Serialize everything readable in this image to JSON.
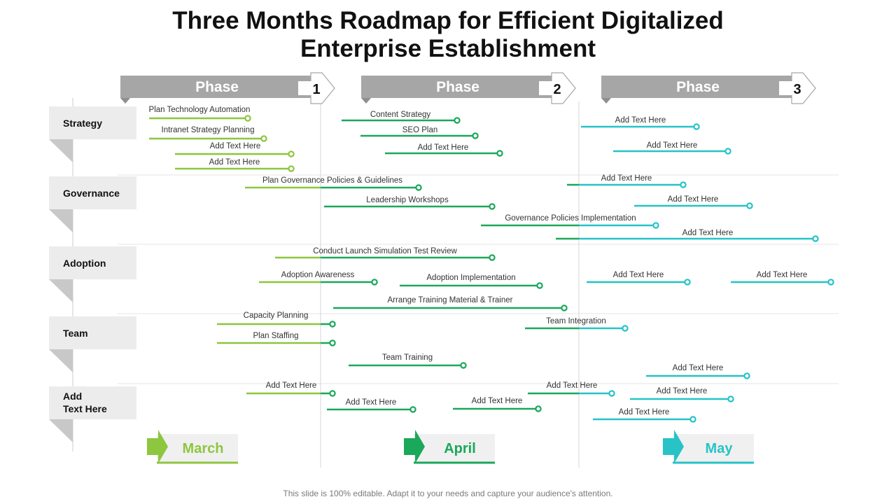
{
  "title_line1": "Three Months Roadmap for Efficient Digitalized",
  "title_line2": "Enterprise Establishment",
  "footer": "This slide is 100% editable. Adapt it to your needs and capture your audience's attention.",
  "colors": {
    "march": "#8dc63f",
    "april": "#1aa85a",
    "may": "#27c3c7",
    "phase_gray": "#a6a6a6",
    "row_label_bg": "#ececec",
    "row_fold": "#c8c8c8"
  },
  "phases": [
    {
      "label": "Phase",
      "number": "1"
    },
    {
      "label": "Phase",
      "number": "2"
    },
    {
      "label": "Phase",
      "number": "3"
    }
  ],
  "rows": [
    {
      "label": "Strategy"
    },
    {
      "label": "Governance"
    },
    {
      "label": "Adoption"
    },
    {
      "label": "Team"
    },
    {
      "label": "Add\nText Here"
    }
  ],
  "months": [
    {
      "label": "March",
      "color": "march"
    },
    {
      "label": "April",
      "color": "april"
    },
    {
      "label": "May",
      "color": "may"
    }
  ],
  "tasks": [
    {
      "label": "Plan Technology Automation",
      "color": "march"
    },
    {
      "label": "Intranet Strategy Planning",
      "color": "march"
    },
    {
      "label": "Add Text Here",
      "color": "march"
    },
    {
      "label": "Add Text Here",
      "color": "march"
    },
    {
      "label": "Content Strategy",
      "color": "april"
    },
    {
      "label": "SEO Plan",
      "color": "april"
    },
    {
      "label": "Add Text Here",
      "color": "april"
    },
    {
      "label": "Add Text Here",
      "color": "may"
    },
    {
      "label": "Add Text Here",
      "color": "may"
    },
    {
      "label": "Plan Governance Policies & Guidelines",
      "color": "march"
    },
    {
      "label": "Leadership Workshops",
      "color": "april"
    },
    {
      "label": "Governance Policies Implementation",
      "color": "april"
    },
    {
      "label": "Add Text Here",
      "color": "may"
    },
    {
      "label": "Add Text Here",
      "color": "may"
    },
    {
      "label": "Add Text Here",
      "color": "may"
    },
    {
      "label": "Conduct Launch Simulation Test Review",
      "color": "april"
    },
    {
      "label": "Adoption Awareness",
      "color": "march"
    },
    {
      "label": "Adoption Implementation",
      "color": "april"
    },
    {
      "label": "Arrange Training Material & Trainer",
      "color": "april"
    },
    {
      "label": "Add Text Here",
      "color": "may"
    },
    {
      "label": "Add Text Here",
      "color": "may"
    },
    {
      "label": "Capacity Planning",
      "color": "march"
    },
    {
      "label": "Plan Staffing",
      "color": "march"
    },
    {
      "label": "Team Training",
      "color": "april"
    },
    {
      "label": "Team Integration",
      "color": "april"
    },
    {
      "label": "Add Text Here",
      "color": "may"
    },
    {
      "label": "Add Text Here",
      "color": "march"
    },
    {
      "label": "Add Text Here",
      "color": "april"
    },
    {
      "label": "Add Text Here",
      "color": "april"
    },
    {
      "label": "Add Text Here",
      "color": "april"
    },
    {
      "label": "Add Text Here",
      "color": "may"
    },
    {
      "label": "Add Text Here",
      "color": "may"
    }
  ]
}
